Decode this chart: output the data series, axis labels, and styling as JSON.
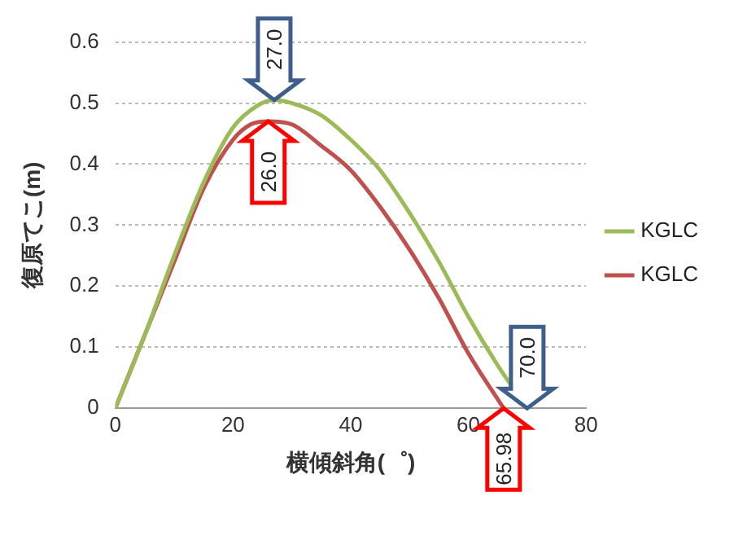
{
  "chart_data": {
    "type": "line",
    "xlabel": "横傾斜角(゜)",
    "ylabel": "復原てこ(m)",
    "xlim": [
      0,
      80
    ],
    "xticks": [
      0,
      20,
      40,
      60,
      80
    ],
    "ylim": [
      0,
      0.6
    ],
    "yticks": [
      0,
      0.1,
      0.2,
      0.3,
      0.4,
      0.5,
      0.6
    ],
    "grid": "y",
    "legend": "right",
    "marker": "none",
    "line_style": "solid",
    "series": [
      {
        "name": "KGLC",
        "color": "#9bbb59",
        "x": [
          0,
          5,
          10,
          15,
          20,
          24,
          27,
          30,
          35,
          40,
          45,
          50,
          55,
          60,
          65,
          70
        ],
        "values": [
          0,
          0.12,
          0.25,
          0.37,
          0.46,
          0.495,
          0.505,
          0.5,
          0.48,
          0.44,
          0.39,
          0.32,
          0.24,
          0.15,
          0.07,
          0
        ]
      },
      {
        "name": "KGLC",
        "color": "#c0504d",
        "x": [
          0,
          5,
          10,
          15,
          20,
          23,
          26,
          30,
          35,
          40,
          45,
          50,
          55,
          60,
          65.98
        ],
        "values": [
          0,
          0.12,
          0.24,
          0.36,
          0.44,
          0.465,
          0.47,
          0.465,
          0.43,
          0.39,
          0.33,
          0.26,
          0.18,
          0.09,
          0
        ]
      }
    ],
    "annotations": [
      {
        "text": "27.0",
        "x": 27,
        "y": 0.505
      },
      {
        "text": "26.0",
        "x": 26,
        "y": 0.47
      },
      {
        "text": "70.0",
        "x": 70,
        "y": 0
      },
      {
        "text": "65.98",
        "x": 65.98,
        "y": 0
      }
    ]
  }
}
